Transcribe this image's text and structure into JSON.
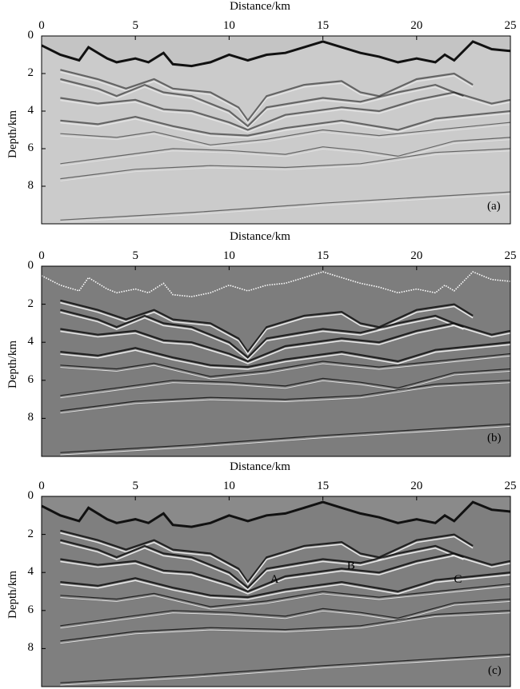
{
  "figure": {
    "x_axis_title": "Distance/km",
    "y_axis_title": "Depth/km",
    "x_ticks": [
      "0",
      "5",
      "10",
      "15",
      "20",
      "25"
    ],
    "y_ticks": [
      "0",
      "2",
      "4",
      "6",
      "8"
    ],
    "x_range_km": [
      0,
      25
    ],
    "y_range_km": [
      0,
      10
    ]
  },
  "panels": [
    {
      "id": "a",
      "label": "(a)",
      "background": "#cbcbcb",
      "annotations": []
    },
    {
      "id": "b",
      "label": "(b)",
      "background": "#7d7d7d",
      "annotations": []
    },
    {
      "id": "c",
      "label": "(c)",
      "background": "#7f7f7f",
      "annotations": [
        {
          "text": "A",
          "x_km": 12.4,
          "depth_km": 4.4
        },
        {
          "text": "B",
          "x_km": 16.5,
          "depth_km": 3.7
        },
        {
          "text": "C",
          "x_km": 22.2,
          "depth_km": 4.4
        }
      ]
    }
  ],
  "colors": {
    "panel_a": "#cbcbcb",
    "panel_bc": "#7d7d7d",
    "reflector_dark": "#111111",
    "reflector_light": "#f2f2f2"
  }
}
